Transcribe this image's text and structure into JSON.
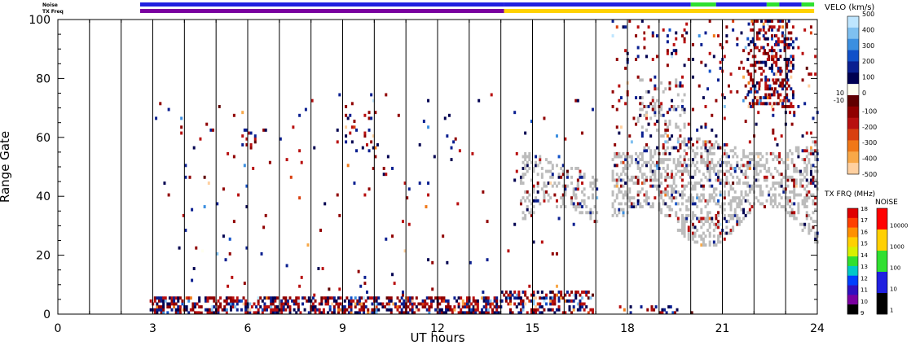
{
  "chart_data": {
    "type": "heatmap",
    "xlabel": "UT hours",
    "ylabel": "Range Gate",
    "xlim": [
      0,
      24
    ],
    "ylim": [
      0,
      100
    ],
    "x_ticks": [
      "0",
      "3",
      "6",
      "9",
      "12",
      "15",
      "18",
      "21",
      "24"
    ],
    "y_ticks": [
      "0",
      "20",
      "40",
      "60",
      "80",
      "100"
    ],
    "x_tick_values": [
      0,
      3,
      6,
      9,
      12,
      15,
      18,
      21,
      24
    ],
    "y_tick_values": [
      0,
      20,
      40,
      60,
      80,
      100
    ],
    "minor_x_ticks_per_hour": 1,
    "scan_boundaries_hours": [
      1,
      2,
      3,
      4,
      5,
      6,
      7,
      8,
      9,
      10,
      11,
      12,
      13,
      14,
      15,
      16,
      17,
      18,
      19,
      20,
      21,
      22,
      23
    ],
    "status_strips": [
      {
        "label": "Noise",
        "segments": [
          {
            "from": 2.6,
            "to": 14.1,
            "color": "#2020e0"
          },
          {
            "from": 14.1,
            "to": 20.0,
            "color": "#2020e0"
          },
          {
            "from": 20.0,
            "to": 20.8,
            "color": "#30e030"
          },
          {
            "from": 20.8,
            "to": 22.4,
            "color": "#2020e0"
          },
          {
            "from": 22.4,
            "to": 22.8,
            "color": "#30e030"
          },
          {
            "from": 22.8,
            "to": 23.5,
            "color": "#2020e0"
          },
          {
            "from": 23.5,
            "to": 23.9,
            "color": "#30e030"
          }
        ]
      },
      {
        "label": "TX Freq",
        "segments": [
          {
            "from": 2.6,
            "to": 14.1,
            "color": "#7a00a0"
          },
          {
            "from": 14.1,
            "to": 23.9,
            "color": "#ffd200"
          }
        ]
      }
    ],
    "velocity_scale": {
      "title": "VELO (km/s)",
      "ticks": [
        "500",
        "400",
        "300",
        "200",
        "100",
        "0",
        "-100",
        "-200",
        "-300",
        "-400",
        "-500"
      ],
      "tick_values": [
        500,
        400,
        300,
        200,
        100,
        0,
        -100,
        -200,
        -300,
        -400,
        -500
      ],
      "threshold_labels": [
        "10",
        "-10"
      ],
      "colors": [
        "#bfe6ff",
        "#7fc0f0",
        "#3c8fe0",
        "#1050c8",
        "#0a1f90",
        "#000050",
        "#fffff0",
        "#600000",
        "#900000",
        "#b81010",
        "#d84010",
        "#f07818",
        "#f8a848",
        "#ffd0a0"
      ]
    },
    "tx_freq_scale": {
      "title": "TX FRQ (MHz)",
      "ticks": [
        "18",
        "17",
        "16",
        "15",
        "14",
        "13",
        "12",
        "11",
        "10",
        "9"
      ],
      "tick_values": [
        18,
        17,
        16,
        15,
        14,
        13,
        12,
        11,
        10,
        9
      ],
      "colors": [
        "#e00000",
        "#ff4000",
        "#ff9000",
        "#ffd000",
        "#d8f000",
        "#30e030",
        "#00c8c8",
        "#0040ff",
        "#3010c0",
        "#7a00a0",
        "#000000"
      ]
    },
    "noise_scale": {
      "title": "NOISE",
      "ticks": [
        "10000",
        "1000",
        "100",
        "10",
        "1"
      ],
      "tick_values": [
        10000,
        1000,
        100,
        10,
        1
      ],
      "colors": [
        "#ff0000",
        "#ffd000",
        "#30e030",
        "#2020e0",
        "#000000"
      ]
    },
    "ground_scatter_color": "#bcbcbc",
    "data_regions": [
      {
        "t": [
          2.9,
          14.0
        ],
        "gates": [
          0,
          6
        ],
        "density": 0.55,
        "kind": "velocity"
      },
      {
        "t": [
          14.0,
          16.9
        ],
        "gates": [
          0,
          8
        ],
        "density": 0.45,
        "kind": "velocity"
      },
      {
        "t": [
          17.6,
          20.0
        ],
        "gates": [
          0,
          3
        ],
        "density": 0.2,
        "kind": "velocity"
      },
      {
        "t": [
          3.0,
          17.0
        ],
        "gates": [
          6,
          75
        ],
        "density": 0.012,
        "kind": "velocity"
      },
      {
        "t": [
          5.8,
          6.2
        ],
        "gates": [
          56,
          66
        ],
        "density": 0.28,
        "kind": "velocity"
      },
      {
        "t": [
          9.0,
          10.1
        ],
        "gates": [
          55,
          69
        ],
        "density": 0.16,
        "kind": "velocity"
      },
      {
        "t": [
          14.6,
          17.0
        ],
        "gates": [
          33,
          55
        ],
        "density": 0.3,
        "kind": "ground",
        "shape": "bowl"
      },
      {
        "t": [
          17.5,
          24.0
        ],
        "gates": [
          26,
          57
        ],
        "density": 0.38,
        "kind": "ground",
        "shape": "wave"
      },
      {
        "t": [
          18.3,
          19.8
        ],
        "gates": [
          60,
          80
        ],
        "density": 0.18,
        "kind": "ground"
      },
      {
        "t": [
          17.5,
          24.0
        ],
        "gates": [
          56,
          100
        ],
        "density": 0.06,
        "kind": "velocity"
      },
      {
        "t": [
          21.8,
          23.2
        ],
        "gates": [
          70,
          100
        ],
        "density": 0.35,
        "kind": "velocity"
      }
    ]
  }
}
